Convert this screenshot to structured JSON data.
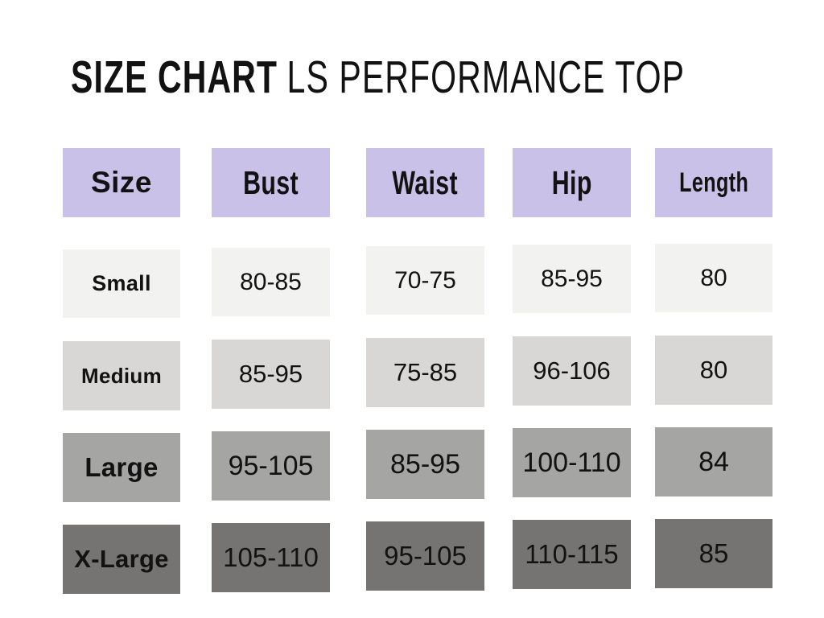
{
  "title": {
    "bold": "SIZE CHART",
    "regular": "LS PERFORMANCE TOP"
  },
  "chart_data": {
    "type": "table",
    "title": "SIZE CHART LS PERFORMANCE TOP",
    "columns": [
      "Size",
      "Bust",
      "Waist",
      "Hip",
      "Length"
    ],
    "rows": [
      [
        "Small",
        "80-85",
        "70-75",
        "85-95",
        "80"
      ],
      [
        "Medium",
        "85-95",
        "75-85",
        "96-106",
        "80"
      ],
      [
        "Large",
        "95-105",
        "85-95",
        "100-110",
        "84"
      ],
      [
        "X-Large",
        "105-110",
        "95-105",
        "110-115",
        "85"
      ]
    ]
  },
  "colors": {
    "background": "#ffffff",
    "header_bg": "#c9c1e8",
    "row_bgs": [
      "#f2f2f1",
      "#d8d7d6",
      "#a5a5a4",
      "#767473"
    ],
    "text": "#121212"
  }
}
